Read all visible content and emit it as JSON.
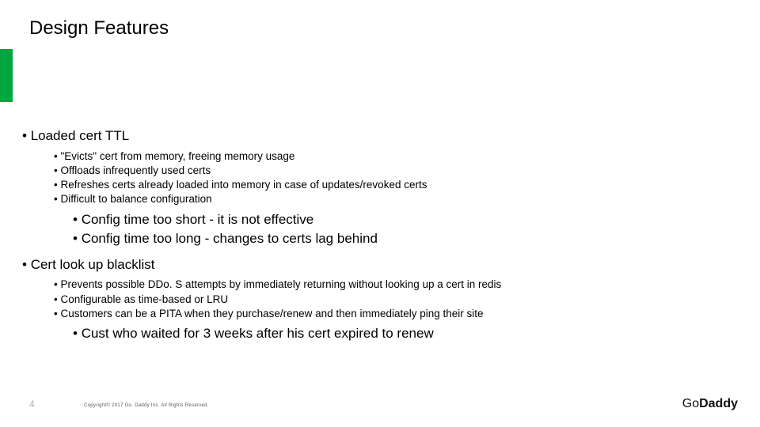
{
  "accent_color": "#00a63f",
  "title": "Design Features",
  "page_number": "4",
  "copyright": "Copyright© 2017 Go. Daddy Inc.  All Rights Reserved.",
  "logo": {
    "part1": "Go",
    "part2": "Daddy"
  },
  "bullets": {
    "b1": "Loaded cert TTL",
    "b1_1": "\"Evicts\" cert from memory, freeing memory usage",
    "b1_2": "Offloads infrequently used certs",
    "b1_3": "Refreshes certs already loaded into memory in case of  updates/revoked certs",
    "b1_4": "Difficult to balance configuration",
    "b1_4_1": "Config time too short - it is not effective",
    "b1_4_2": "Config time too long - changes to certs lag behind",
    "b2": "Cert look up blacklist",
    "b2_1": "Prevents possible DDo. S attempts by immediately returning without looking up a cert in redis",
    "b2_2": "Configurable as time-based or LRU",
    "b2_3": "Customers can be a PITA when they purchase/renew and then immediately ping their site",
    "b2_3_1": "Cust who waited for 3 weeks after his cert expired to renew"
  }
}
